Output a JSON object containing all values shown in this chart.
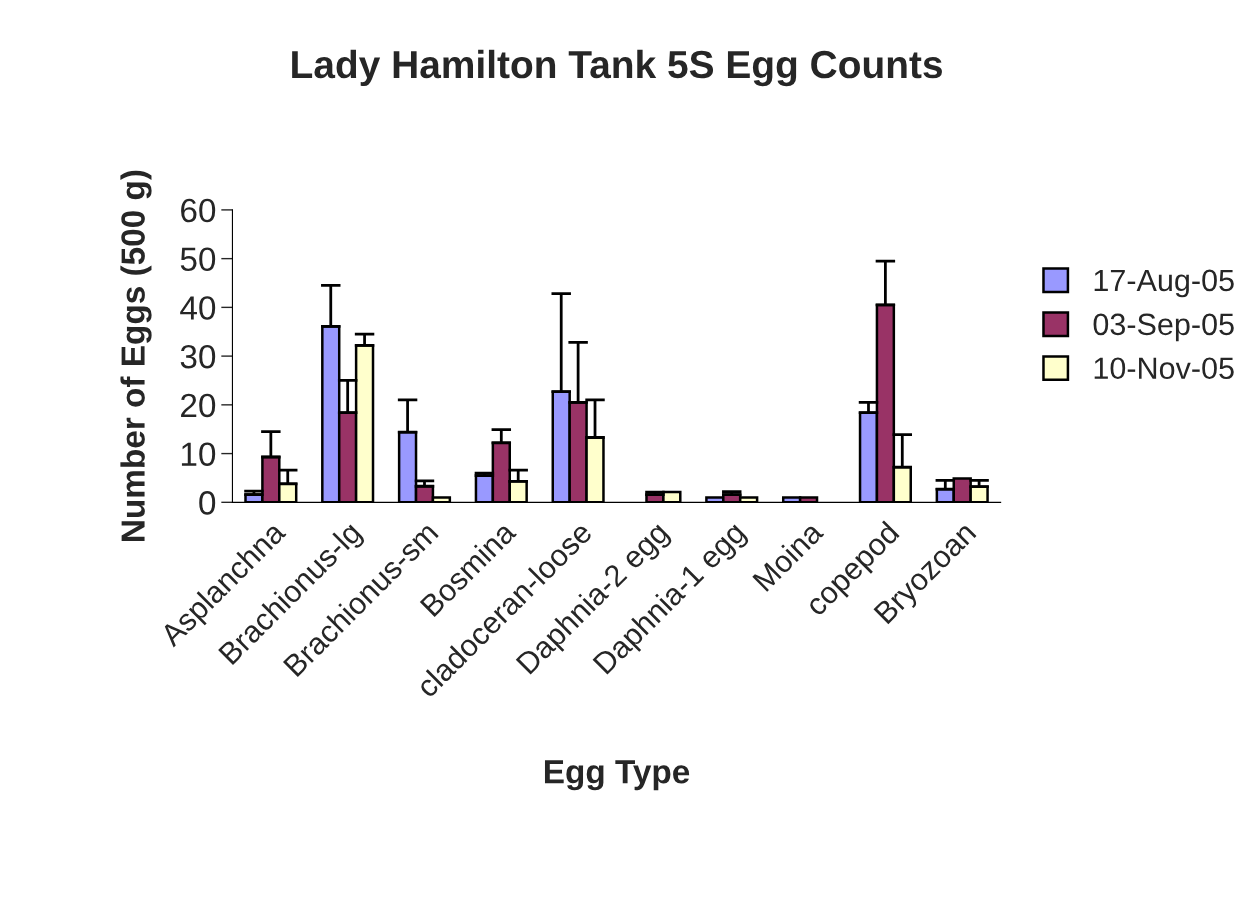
{
  "chart_data": {
    "type": "bar",
    "title": "Lady Hamilton Tank 5S Egg Counts",
    "xlabel": "Egg Type",
    "ylabel": "Number of Eggs (500 g)",
    "categories": [
      "Asplanchna",
      "Brachionus-lg",
      "Brachionus-sm",
      "Bosmina",
      "cladoceran-loose",
      "Daphnia-2 egg",
      "Daphnia-1 egg",
      "Moina",
      "copepod",
      "Bryozoan"
    ],
    "series": [
      {
        "name": "17-Aug-05",
        "color": "#9999ff",
        "values": [
          1.6,
          36.1,
          14.4,
          5.5,
          22.7,
          null,
          1.0,
          1.0,
          18.4,
          2.7
        ],
        "errors": [
          [
            1.6,
            2.3
          ],
          [
            36.1,
            44.5
          ],
          [
            14.4,
            21.0
          ],
          [
            5.5,
            6.0
          ],
          [
            22.7,
            42.8
          ],
          null,
          null,
          null,
          [
            18.4,
            20.5
          ],
          [
            2.7,
            4.5
          ]
        ]
      },
      {
        "name": "03-Sep-05",
        "color": "#993366",
        "values": [
          9.3,
          18.4,
          3.3,
          12.2,
          20.5,
          1.6,
          1.6,
          1.0,
          40.5,
          4.9
        ],
        "errors": [
          [
            9.3,
            14.5
          ],
          [
            18.4,
            25.0
          ],
          [
            3.3,
            4.4
          ],
          [
            12.2,
            14.9
          ],
          [
            20.5,
            32.8
          ],
          [
            1.6,
            2.1
          ],
          [
            1.6,
            2.2
          ],
          null,
          [
            40.5,
            49.5
          ],
          null
        ]
      },
      {
        "name": "10-Nov-05",
        "color": "#ffffcc",
        "values": [
          3.8,
          32.2,
          1.0,
          4.3,
          13.3,
          2.1,
          1.0,
          null,
          7.2,
          3.2
        ],
        "errors": [
          [
            3.8,
            6.6
          ],
          [
            32.2,
            34.5
          ],
          null,
          [
            4.3,
            6.6
          ],
          [
            13.3,
            21.0
          ],
          null,
          null,
          null,
          [
            7.2,
            13.9
          ],
          [
            3.2,
            4.5
          ]
        ]
      }
    ],
    "ylim": [
      0,
      60
    ],
    "yticks": [
      0,
      10,
      20,
      30,
      40,
      50,
      60
    ],
    "grid": false,
    "legend": "right"
  }
}
